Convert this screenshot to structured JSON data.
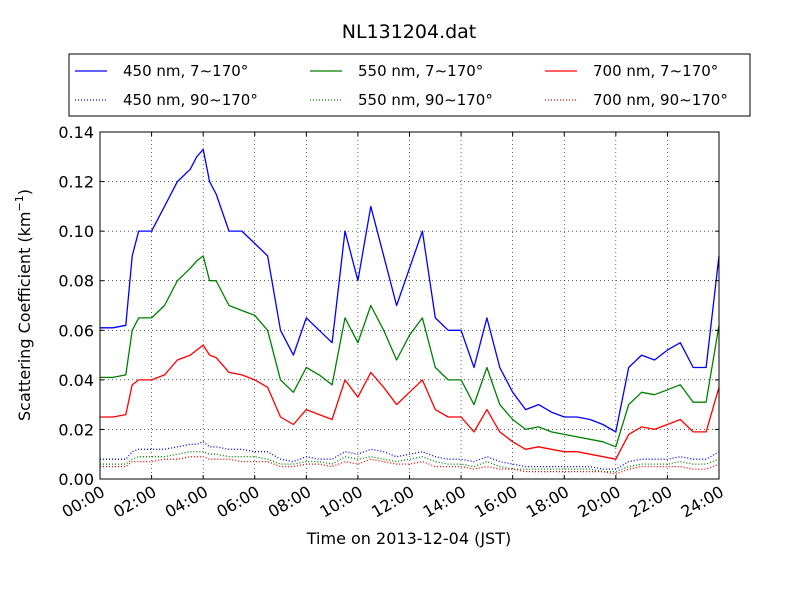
{
  "chart_data": {
    "type": "line",
    "title": "NL131204.dat",
    "xlabel": "Time on 2013-12-04 (JST)",
    "ylabel": "Scattering Coefficient (km",
    "ylabel_sup": "−1",
    "ylabel_close": ")",
    "xlim": [
      0,
      24
    ],
    "ylim": [
      0,
      0.14
    ],
    "x_ticks": [
      0,
      2,
      4,
      6,
      8,
      10,
      12,
      14,
      16,
      18,
      20,
      22,
      24
    ],
    "x_tick_labels": [
      "00:00",
      "02:00",
      "04:00",
      "06:00",
      "08:00",
      "10:00",
      "12:00",
      "14:00",
      "16:00",
      "18:00",
      "20:00",
      "22:00",
      "24:00"
    ],
    "y_ticks": [
      0,
      0.02,
      0.04,
      0.06,
      0.08,
      0.1,
      0.12,
      0.14
    ],
    "y_tick_labels": [
      "0.00",
      "0.02",
      "0.04",
      "0.06",
      "0.08",
      "0.10",
      "0.12",
      "0.14"
    ],
    "grid": true,
    "legend_position": "top",
    "x": [
      0,
      0.5,
      1,
      1.25,
      1.5,
      2,
      2.5,
      3,
      3.5,
      3.75,
      4,
      4.25,
      4.5,
      5,
      5.5,
      6,
      6.5,
      7,
      7.5,
      8,
      8.5,
      9,
      9.5,
      10,
      10.5,
      11,
      11.5,
      12,
      12.5,
      13,
      13.5,
      14,
      14.5,
      15,
      15.5,
      16,
      16.5,
      17,
      17.5,
      18,
      18.5,
      19,
      19.5,
      20,
      20.5,
      21,
      21.5,
      22,
      22.5,
      23,
      23.5,
      24
    ],
    "series": [
      {
        "name": "450 nm, 7∼170°",
        "color": "#0000ff",
        "style": "solid",
        "values": [
          0.061,
          0.061,
          0.062,
          0.09,
          0.1,
          0.1,
          0.11,
          0.12,
          0.125,
          0.13,
          0.133,
          0.12,
          0.115,
          0.1,
          0.1,
          0.095,
          0.09,
          0.06,
          0.05,
          0.065,
          0.06,
          0.055,
          0.1,
          0.08,
          0.11,
          0.09,
          0.07,
          0.085,
          0.1,
          0.065,
          0.06,
          0.06,
          0.045,
          0.065,
          0.045,
          0.035,
          0.028,
          0.03,
          0.027,
          0.025,
          0.025,
          0.024,
          0.022,
          0.019,
          0.045,
          0.05,
          0.048,
          0.052,
          0.055,
          0.045,
          0.045,
          0.09
        ]
      },
      {
        "name": "550 nm, 7∼170°",
        "color": "#008000",
        "style": "solid",
        "values": [
          0.041,
          0.041,
          0.042,
          0.06,
          0.065,
          0.065,
          0.07,
          0.08,
          0.085,
          0.088,
          0.09,
          0.08,
          0.08,
          0.07,
          0.068,
          0.066,
          0.06,
          0.04,
          0.035,
          0.045,
          0.042,
          0.038,
          0.065,
          0.055,
          0.07,
          0.06,
          0.048,
          0.058,
          0.065,
          0.045,
          0.04,
          0.04,
          0.03,
          0.045,
          0.03,
          0.024,
          0.02,
          0.021,
          0.019,
          0.018,
          0.017,
          0.016,
          0.015,
          0.013,
          0.03,
          0.035,
          0.034,
          0.036,
          0.038,
          0.031,
          0.031,
          0.062
        ]
      },
      {
        "name": "700 nm, 7∼170°",
        "color": "#ff0000",
        "style": "solid",
        "values": [
          0.025,
          0.025,
          0.026,
          0.038,
          0.04,
          0.04,
          0.042,
          0.048,
          0.05,
          0.052,
          0.054,
          0.05,
          0.049,
          0.043,
          0.042,
          0.04,
          0.037,
          0.025,
          0.022,
          0.028,
          0.026,
          0.024,
          0.04,
          0.033,
          0.043,
          0.037,
          0.03,
          0.035,
          0.04,
          0.028,
          0.025,
          0.025,
          0.019,
          0.028,
          0.019,
          0.015,
          0.012,
          0.013,
          0.012,
          0.011,
          0.011,
          0.01,
          0.009,
          0.008,
          0.018,
          0.021,
          0.02,
          0.022,
          0.024,
          0.019,
          0.019,
          0.037
        ]
      },
      {
        "name": "450 nm, 90∼170°",
        "color": "#0000ff",
        "style": "dotted",
        "values": [
          0.008,
          0.008,
          0.008,
          0.011,
          0.012,
          0.012,
          0.012,
          0.013,
          0.014,
          0.014,
          0.015,
          0.013,
          0.013,
          0.012,
          0.012,
          0.011,
          0.011,
          0.008,
          0.007,
          0.009,
          0.008,
          0.008,
          0.011,
          0.01,
          0.012,
          0.011,
          0.009,
          0.01,
          0.011,
          0.009,
          0.008,
          0.008,
          0.007,
          0.009,
          0.007,
          0.006,
          0.005,
          0.005,
          0.005,
          0.005,
          0.005,
          0.005,
          0.004,
          0.004,
          0.007,
          0.008,
          0.008,
          0.008,
          0.009,
          0.008,
          0.008,
          0.011
        ]
      },
      {
        "name": "550 nm, 90∼170°",
        "color": "#008000",
        "style": "dotted",
        "values": [
          0.006,
          0.006,
          0.006,
          0.008,
          0.009,
          0.009,
          0.009,
          0.01,
          0.011,
          0.011,
          0.011,
          0.01,
          0.01,
          0.009,
          0.009,
          0.009,
          0.008,
          0.006,
          0.006,
          0.007,
          0.007,
          0.006,
          0.009,
          0.008,
          0.009,
          0.008,
          0.007,
          0.008,
          0.009,
          0.007,
          0.006,
          0.006,
          0.005,
          0.007,
          0.005,
          0.004,
          0.004,
          0.004,
          0.004,
          0.004,
          0.004,
          0.004,
          0.003,
          0.003,
          0.005,
          0.006,
          0.006,
          0.006,
          0.007,
          0.006,
          0.006,
          0.008
        ]
      },
      {
        "name": "700 nm, 90∼170°",
        "color": "#ff0000",
        "style": "dotted",
        "values": [
          0.005,
          0.005,
          0.005,
          0.007,
          0.007,
          0.007,
          0.008,
          0.008,
          0.009,
          0.009,
          0.009,
          0.008,
          0.008,
          0.008,
          0.007,
          0.007,
          0.007,
          0.005,
          0.005,
          0.006,
          0.006,
          0.005,
          0.007,
          0.006,
          0.008,
          0.007,
          0.006,
          0.006,
          0.007,
          0.005,
          0.005,
          0.005,
          0.004,
          0.005,
          0.004,
          0.004,
          0.003,
          0.003,
          0.003,
          0.003,
          0.003,
          0.003,
          0.003,
          0.002,
          0.004,
          0.005,
          0.005,
          0.005,
          0.005,
          0.004,
          0.004,
          0.006
        ]
      }
    ]
  }
}
